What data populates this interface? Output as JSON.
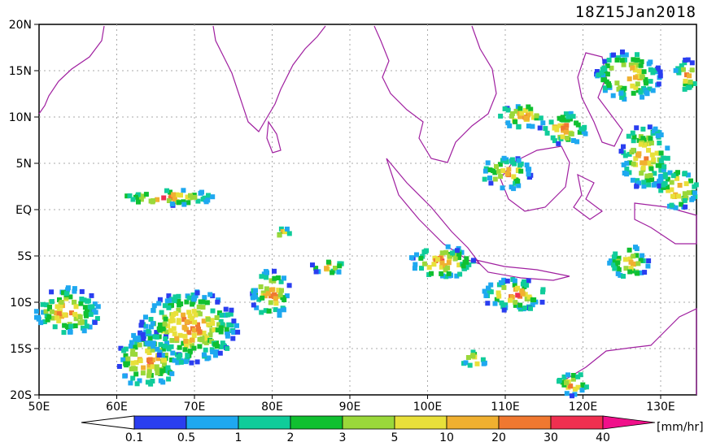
{
  "title": "18Z15Jan2018",
  "units": "[mm/hr]",
  "lat_labels": [
    "20N",
    "15N",
    "10N",
    "5N",
    "EQ",
    "5S",
    "10S",
    "15S",
    "20S"
  ],
  "lon_labels": [
    "50E",
    "60E",
    "70E",
    "80E",
    "90E",
    "100E",
    "110E",
    "120E",
    "130E"
  ],
  "colorbar": {
    "labels": [
      "0.1",
      "0.5",
      "1",
      "2",
      "3",
      "5",
      "10",
      "20",
      "30",
      "40"
    ],
    "colors": [
      "#2a3ef0",
      "#1ea8f0",
      "#10cc9a",
      "#10c030",
      "#9ad83a",
      "#e8e03a",
      "#f0b030",
      "#f07830",
      "#f03050",
      "#f0108a"
    ]
  },
  "colors": {
    "coast": "#a020a0",
    "grid": "#aaaaaa"
  }
}
